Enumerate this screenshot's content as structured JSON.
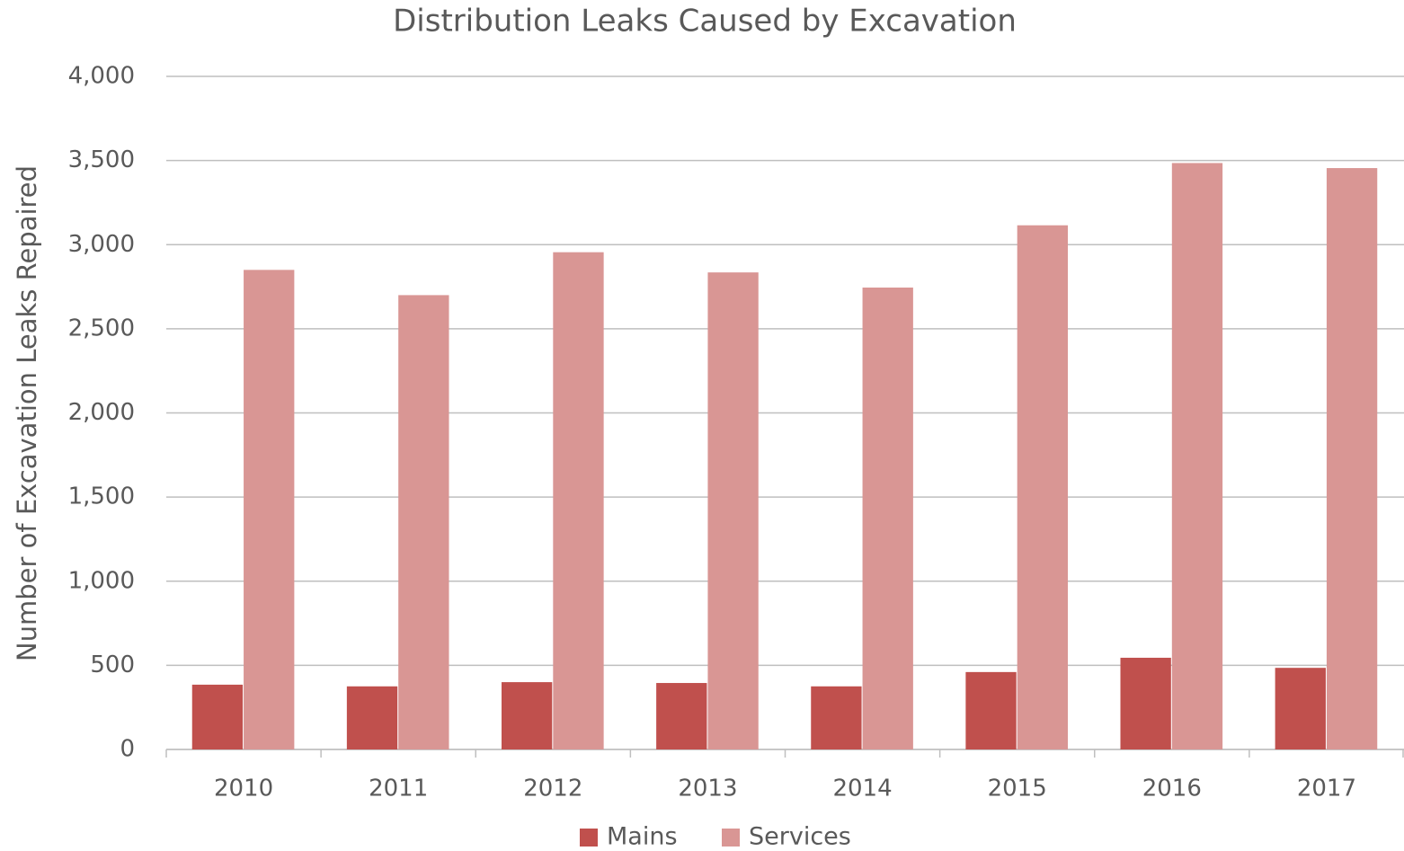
{
  "chart_data": {
    "type": "bar",
    "title": "Distribution Leaks Caused by Excavation",
    "y_label": "Number of Excavation Leaks Repaired",
    "categories": [
      "2010",
      "2011",
      "2012",
      "2013",
      "2014",
      "2015",
      "2016",
      "2017"
    ],
    "series": [
      {
        "name": "Mains",
        "color": "#c0504d",
        "values": [
          385,
          375,
          400,
          395,
          375,
          460,
          545,
          485
        ]
      },
      {
        "name": "Services",
        "color": "#d99694",
        "values": [
          2850,
          2700,
          2955,
          2835,
          2745,
          3115,
          3485,
          3455
        ]
      }
    ],
    "ylim": [
      0,
      4000
    ],
    "yticks": [
      0,
      500,
      {
        "value": 1000,
        "label": "1,000"
      },
      {
        "value": 1500,
        "label": "1,500"
      },
      {
        "value": 2000,
        "label": "2,000"
      },
      {
        "value": 2500,
        "label": "2,500"
      },
      {
        "value": 3000,
        "label": "3,000"
      },
      {
        "value": 3500,
        "label": "3,500"
      },
      {
        "value": 4000,
        "label": "4,000"
      }
    ],
    "grid": true,
    "legend": "bottom"
  }
}
